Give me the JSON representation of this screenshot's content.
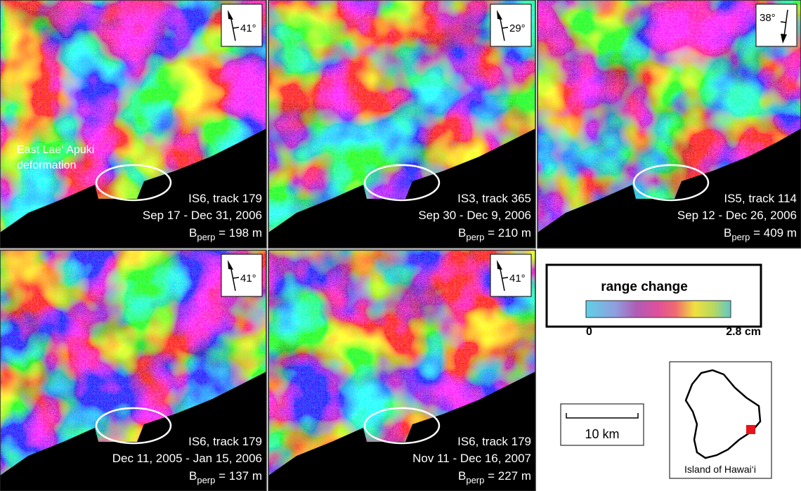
{
  "panels": [
    {
      "track": "IS6, track 179",
      "dates": "Sep 17 - Dec 31, 2006",
      "bperp_symbol": "B",
      "bperp_sub": "perp",
      "bperp_value": " = 198 m",
      "heading": "41°"
    },
    {
      "track": "IS3, track 365",
      "dates": "Sep 30 - Dec 9, 2006",
      "bperp_symbol": "B",
      "bperp_sub": "perp",
      "bperp_value": " = 210 m",
      "heading": "29°"
    },
    {
      "track": "IS5, track 114",
      "dates": "Sep 12 - Dec 26, 2006",
      "bperp_symbol": "B",
      "bperp_sub": "perp",
      "bperp_value": " = 409 m",
      "heading": "38°"
    },
    {
      "track": "IS6, track 179",
      "dates": "Dec 11, 2005 - Jan 15, 2006",
      "bperp_symbol": "B",
      "bperp_sub": "perp",
      "bperp_value": " = 137 m",
      "heading": "41°"
    },
    {
      "track": "IS6, track 179",
      "dates": "Nov 11 - Dec 16, 2007",
      "bperp_symbol": "B",
      "bperp_sub": "perp",
      "bperp_value": " = 227 m",
      "heading": "41°"
    }
  ],
  "annotation": {
    "line1": "East Lae‘ Apuki",
    "line2": "deformation"
  },
  "legend": {
    "title": "range change",
    "min_label": "0",
    "max_label": "2.8 cm"
  },
  "scale_bar": {
    "label": "10 km"
  },
  "inset": {
    "label": "Island of Hawai‘i"
  }
}
